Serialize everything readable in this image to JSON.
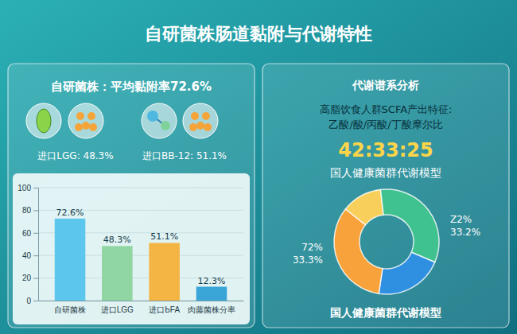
{
  "header": {
    "title": "自研菌株肠道黏附与代谢特性"
  },
  "left_panel": {
    "title": "自研菌株：平均黏附率72.6%",
    "badges": [
      "进口LGG: 48.3%",
      "进口BB-12: 51.1%"
    ]
  },
  "right_panel": {
    "title": "代谢谱系分析",
    "subtitle_lines": [
      "高脂饮食人群SCFA产出特征:",
      "乙酸/酸/丙酸/丁酸摩尔比"
    ],
    "ratio": "42:33:25",
    "model_title": "国人健康菌群代谢模型"
  },
  "chart_data": [
    {
      "type": "bar",
      "categories": [
        "自研菌株",
        "进口LGG",
        "进口ЬFA",
        "肉藤菌株分率"
      ],
      "values": [
        72.6,
        48.3,
        51.1,
        12.3
      ],
      "value_labels": [
        "72.6%",
        "48.3%",
        "51.1%",
        "12.3%"
      ],
      "colors": [
        "#5cc6ec",
        "#8fd6a2",
        "#f4b545",
        "#3aa6d8"
      ],
      "ylim": [
        0,
        100
      ],
      "yticks": [
        0,
        20,
        40,
        60,
        80,
        100
      ],
      "grid": true,
      "data_labels": true
    },
    {
      "type": "pie",
      "title": "国人健康菌群代谢模型",
      "values": [
        12.5,
        33.2,
        21,
        33.3
      ],
      "value_labels": [
        null,
        "33.2%",
        null,
        "33.3%"
      ],
      "annotations": [
        null,
        "Z2%",
        null,
        "72%"
      ],
      "colors": [
        "#f7cf5a",
        "#3fc28f",
        "#2f8fe0",
        "#f7a23a"
      ],
      "data_labels": true
    }
  ]
}
